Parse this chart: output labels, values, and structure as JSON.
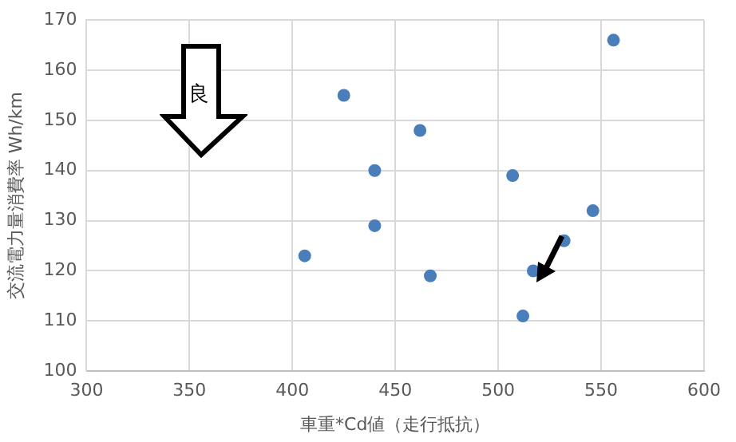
{
  "chart_data": {
    "type": "scatter",
    "xlabel": "車重*Cd値（走行抵抗）",
    "ylabel": "交流電力量消費率 Wh/km",
    "x": [
      425,
      462,
      440,
      440,
      406,
      467,
      507,
      556,
      546,
      532,
      517,
      512
    ],
    "values": [
      155,
      148,
      140,
      129,
      123,
      119,
      139,
      166,
      132,
      126,
      120,
      111
    ],
    "color": "#4a7ebb",
    "marker": "circle",
    "xlim": [
      300,
      600
    ],
    "xticks": [
      300,
      350,
      400,
      450,
      500,
      550,
      600
    ],
    "ylim": [
      100,
      170
    ],
    "yticks": [
      100,
      110,
      120,
      130,
      140,
      150,
      160,
      170
    ],
    "grid": true,
    "legend": false,
    "annotations": [
      "良"
    ]
  }
}
